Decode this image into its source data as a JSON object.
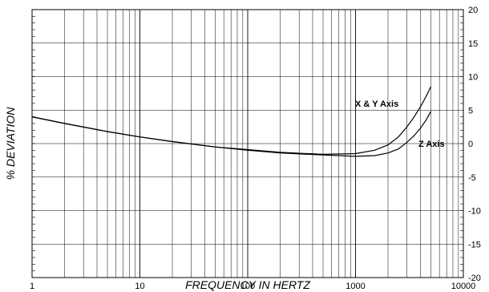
{
  "chart_data": {
    "type": "line",
    "title": "",
    "xlabel": "FREQUENCY IN HERTZ",
    "ylabel": "% DEVIATION",
    "x_scale": "log",
    "xlim": [
      1,
      10000
    ],
    "ylim": [
      -20,
      20
    ],
    "x_ticks": [
      "1",
      "10",
      "100",
      "1000",
      "10000"
    ],
    "y_ticks": [
      "20",
      "15",
      "10",
      "5",
      "0",
      "-5",
      "-10",
      "-15",
      "-20"
    ],
    "grid": true,
    "series": [
      {
        "name": "X & Y Axis",
        "x": [
          1,
          2,
          5,
          10,
          20,
          50,
          100,
          200,
          500,
          1000,
          1500,
          2000,
          2500,
          3000,
          3500,
          4000,
          4500,
          5000
        ],
        "y": [
          4.0,
          3.0,
          1.8,
          1.0,
          0.3,
          -0.5,
          -0.9,
          -1.3,
          -1.6,
          -1.5,
          -1.0,
          -0.2,
          1.0,
          2.5,
          4.0,
          5.5,
          7.0,
          8.5
        ]
      },
      {
        "name": "Z Axis",
        "x": [
          1,
          2,
          5,
          10,
          20,
          50,
          100,
          200,
          500,
          1000,
          1500,
          2000,
          2500,
          3000,
          3500,
          4000,
          4500,
          5000
        ],
        "y": [
          4.0,
          3.0,
          1.8,
          1.0,
          0.3,
          -0.5,
          -1.0,
          -1.4,
          -1.7,
          -1.9,
          -1.8,
          -1.4,
          -0.8,
          0.2,
          1.2,
          2.3,
          3.5,
          4.8
        ]
      }
    ]
  }
}
